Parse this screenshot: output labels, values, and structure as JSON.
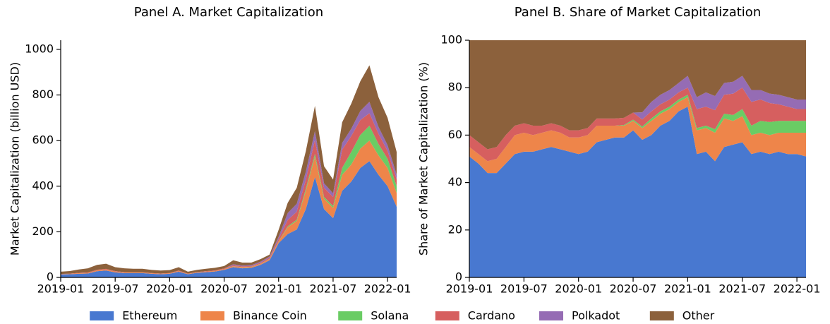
{
  "chart_data": [
    {
      "type": "stacked_area",
      "title": "Panel A. Market Capitalization",
      "y_label": "Market Capitalization (billion USD)",
      "x": [
        "2019-01",
        "2019-02",
        "2019-03",
        "2019-04",
        "2019-05",
        "2019-06",
        "2019-07",
        "2019-08",
        "2019-09",
        "2019-10",
        "2019-11",
        "2019-12",
        "2020-01",
        "2020-02",
        "2020-03",
        "2020-04",
        "2020-05",
        "2020-06",
        "2020-07",
        "2020-08",
        "2020-09",
        "2020-10",
        "2020-11",
        "2020-12",
        "2021-01",
        "2021-02",
        "2021-03",
        "2021-04",
        "2021-05",
        "2021-06",
        "2021-07",
        "2021-08",
        "2021-09",
        "2021-10",
        "2021-11",
        "2021-12",
        "2022-01",
        "2022-02"
      ],
      "xlim": [
        "2019-01",
        "2022-02"
      ],
      "xticks": [
        "2019-01",
        "2019-07",
        "2020-01",
        "2020-07",
        "2021-01",
        "2021-07",
        "2022-01"
      ],
      "ylim": [
        0,
        1040
      ],
      "yticks": [
        0,
        200,
        400,
        600,
        800,
        1000
      ],
      "series": [
        {
          "name": "Ethereum",
          "color": "#4878d0",
          "values": [
            13,
            14,
            16,
            17,
            27,
            30,
            22,
            19,
            19,
            19,
            16,
            14,
            16,
            25,
            14,
            20,
            23,
            26,
            33,
            45,
            40,
            42,
            55,
            75,
            150,
            190,
            210,
            300,
            440,
            300,
            260,
            380,
            420,
            480,
            510,
            450,
            400,
            310
          ]
        },
        {
          "name": "Binance Coin",
          "color": "#ee854a",
          "values": [
            1,
            1.5,
            2.5,
            3,
            4.5,
            5,
            4,
            3,
            2.5,
            2.5,
            2.3,
            2,
            2.2,
            3.5,
            2,
            2.5,
            2.8,
            2.7,
            3,
            4,
            4.5,
            4.3,
            4.2,
            5.5,
            7,
            30,
            38,
            80,
            90,
            45,
            45,
            70,
            75,
            85,
            90,
            85,
            80,
            60
          ]
        },
        {
          "name": "Solana",
          "color": "#6acc64",
          "values": [
            0,
            0,
            0,
            0,
            0,
            0,
            0,
            0,
            0,
            0,
            0,
            0,
            0,
            0,
            0,
            0.03,
            0.05,
            0.1,
            0.3,
            0.5,
            0.8,
            0.8,
            0.8,
            0.8,
            1.5,
            4,
            5,
            9,
            12,
            8,
            8,
            30,
            55,
            60,
            65,
            50,
            40,
            30
          ]
        },
        {
          "name": "Cardano",
          "color": "#d65f5f",
          "values": [
            1,
            1.2,
            1.5,
            2,
            2.3,
            2.5,
            1.8,
            1.3,
            1.1,
            1.1,
            1,
            0.9,
            1.1,
            2,
            0.8,
            1.1,
            1.8,
            2.2,
            3.3,
            4,
            3,
            3,
            4.3,
            5,
            10,
            28,
            35,
            40,
            60,
            40,
            40,
            80,
            70,
            65,
            55,
            45,
            35,
            30
          ]
        },
        {
          "name": "Polkadot",
          "color": "#956cb4",
          "values": [
            0,
            0,
            0,
            0,
            0,
            0,
            0,
            0,
            0,
            0,
            0,
            0,
            0,
            0,
            0,
            0,
            0,
            0,
            0,
            4,
            3.5,
            3.5,
            4.5,
            5,
            10,
            30,
            35,
            35,
            40,
            20,
            16,
            30,
            32,
            40,
            50,
            30,
            25,
            20
          ]
        },
        {
          "name": "Other",
          "color": "#8c613c",
          "values": [
            10,
            11.3,
            15,
            18,
            21.2,
            22.5,
            17.2,
            16.7,
            15.4,
            15.4,
            13.7,
            13.1,
            12.7,
            14.5,
            8.2,
            9.4,
            10.4,
            11,
            10.4,
            17.5,
            13.2,
            11.4,
            11.2,
            8.7,
            30,
            45,
            70,
            90,
            110,
            75,
            60,
            90,
            110,
            130,
            160,
            130,
            120,
            100
          ]
        }
      ]
    },
    {
      "type": "stacked_area",
      "title": "Panel B. Share of Market Capitalization",
      "y_label": "Share of Market Capitalization (%)",
      "x": [
        "2019-01",
        "2019-02",
        "2019-03",
        "2019-04",
        "2019-05",
        "2019-06",
        "2019-07",
        "2019-08",
        "2019-09",
        "2019-10",
        "2019-11",
        "2019-12",
        "2020-01",
        "2020-02",
        "2020-03",
        "2020-04",
        "2020-05",
        "2020-06",
        "2020-07",
        "2020-08",
        "2020-09",
        "2020-10",
        "2020-11",
        "2020-12",
        "2021-01",
        "2021-02",
        "2021-03",
        "2021-04",
        "2021-05",
        "2021-06",
        "2021-07",
        "2021-08",
        "2021-09",
        "2021-10",
        "2021-11",
        "2021-12",
        "2022-01",
        "2022-02"
      ],
      "xlim": [
        "2019-01",
        "2022-02"
      ],
      "xticks": [
        "2019-01",
        "2019-07",
        "2020-01",
        "2020-07",
        "2021-01",
        "2021-07",
        "2022-01"
      ],
      "ylim": [
        0,
        100
      ],
      "yticks": [
        0,
        20,
        40,
        60,
        80,
        100
      ],
      "series": [
        {
          "color": "#4878d0",
          "values": [
            51,
            48,
            44,
            44,
            48,
            52,
            53,
            53,
            54,
            55,
            54,
            53,
            52,
            53,
            57,
            58,
            59,
            59,
            62,
            58,
            60,
            64,
            66,
            70,
            72,
            52,
            53,
            49,
            55,
            56,
            57,
            52,
            53,
            52,
            53,
            52,
            52,
            51
          ]
        },
        {
          "color": "#ee854a",
          "values": [
            4,
            4,
            5,
            6,
            7,
            8,
            8,
            7,
            7,
            7,
            7,
            6,
            7,
            7,
            7,
            6,
            5,
            5,
            4,
            5,
            6,
            5,
            5,
            4,
            4,
            10,
            10,
            12,
            12,
            10,
            11,
            8,
            8,
            8,
            8,
            9,
            9,
            10
          ]
        },
        {
          "color": "#6acc64",
          "values": [
            0,
            0,
            0,
            0,
            0,
            0,
            0,
            0,
            0,
            0,
            0,
            0,
            0,
            0,
            0,
            0,
            0,
            0.3,
            0.5,
            0.6,
            1,
            1,
            1,
            1,
            1,
            1,
            1,
            1.5,
            2,
            2.5,
            3,
            4,
            5,
            5.5,
            5,
            5,
            5,
            5
          ]
        },
        {
          "color": "#d65f5f",
          "values": [
            5,
            5,
            5,
            5,
            5,
            4,
            4,
            4,
            3,
            3,
            3,
            3,
            3,
            3,
            3,
            3,
            3,
            3,
            3,
            3,
            3,
            3,
            3,
            3,
            3,
            8,
            8,
            8,
            8,
            9,
            9,
            10,
            9,
            8,
            7,
            6,
            5,
            5
          ]
        },
        {
          "color": "#956cb4",
          "values": [
            0,
            0,
            0,
            0,
            0,
            0,
            0,
            0,
            0,
            0,
            0,
            0,
            0,
            0,
            0,
            0,
            0,
            0,
            0,
            3,
            4,
            4,
            4,
            4,
            5,
            5,
            6,
            6,
            5,
            5,
            5,
            5,
            4,
            4,
            4,
            4,
            4,
            4
          ]
        },
        {
          "color": "#8c613c",
          "values": [
            40,
            43,
            46,
            45,
            40,
            36,
            35,
            36,
            36,
            35,
            36,
            38,
            38,
            37,
            33,
            33,
            33,
            32.7,
            30.5,
            30.4,
            26,
            23,
            21,
            18,
            15,
            24,
            22,
            23.5,
            18,
            17.5,
            15,
            21,
            21,
            22.5,
            23,
            24,
            25,
            25
          ]
        }
      ]
    }
  ]
}
